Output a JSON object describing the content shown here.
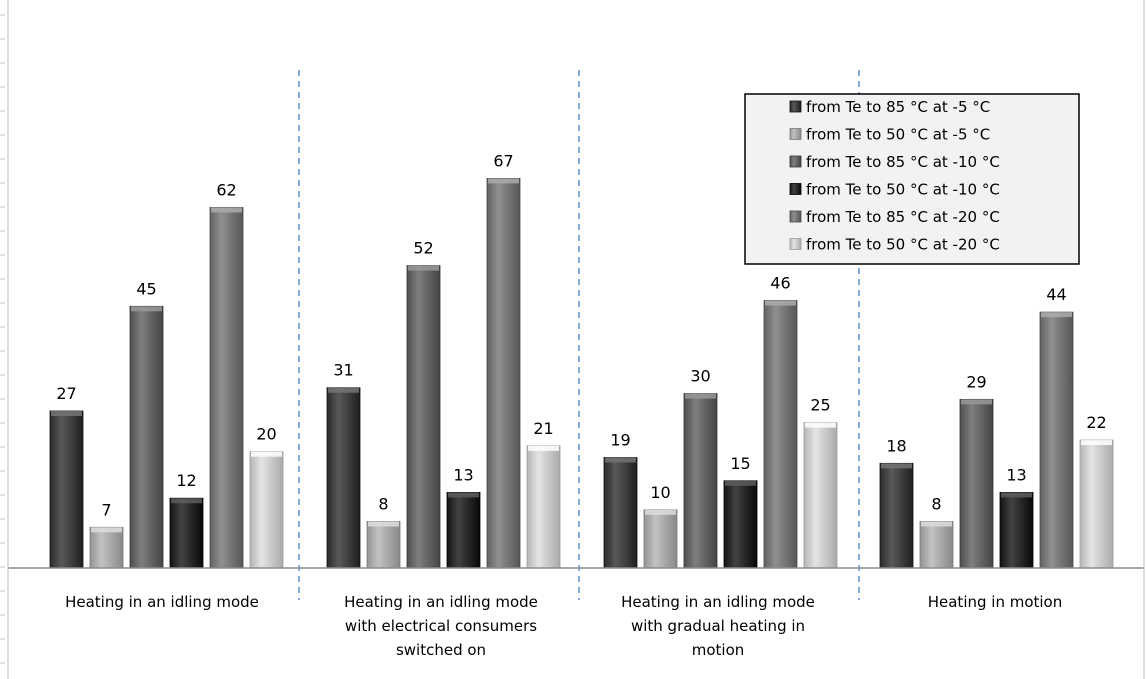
{
  "chart_data": {
    "type": "bar",
    "title": "",
    "xlabel": "",
    "ylabel": "",
    "ylim": [
      0,
      80
    ],
    "grid": false,
    "legend_position": "top-right",
    "categories": [
      [
        "Heating in an idling mode"
      ],
      [
        "Heating in an idling mode",
        "with electrical consumers",
        "switched on"
      ],
      [
        "Heating in an idling mode",
        "with gradual heating in",
        "motion"
      ],
      [
        "Heating in motion"
      ]
    ],
    "series": [
      {
        "name": "from Te to 85 °C at -5 °C",
        "values": [
          27,
          31,
          19,
          18
        ],
        "color": "#3d3d3d"
      },
      {
        "name": "from Te to 50 °C at -5 °C",
        "values": [
          7,
          8,
          10,
          8
        ],
        "color": "#a6a6a6"
      },
      {
        "name": "from Te to 85 °C at -10 °C",
        "values": [
          45,
          52,
          30,
          29
        ],
        "color": "#626262"
      },
      {
        "name": "from Te to 50 °C at -10 °C",
        "values": [
          12,
          13,
          15,
          13
        ],
        "color": "#262626"
      },
      {
        "name": "from Te to 85 °C at -20 °C",
        "values": [
          62,
          67,
          46,
          44
        ],
        "color": "#747474"
      },
      {
        "name": "from Te to 50 °C at -20 °C",
        "values": [
          20,
          21,
          25,
          22
        ],
        "color": "#c8c8c8"
      }
    ]
  }
}
